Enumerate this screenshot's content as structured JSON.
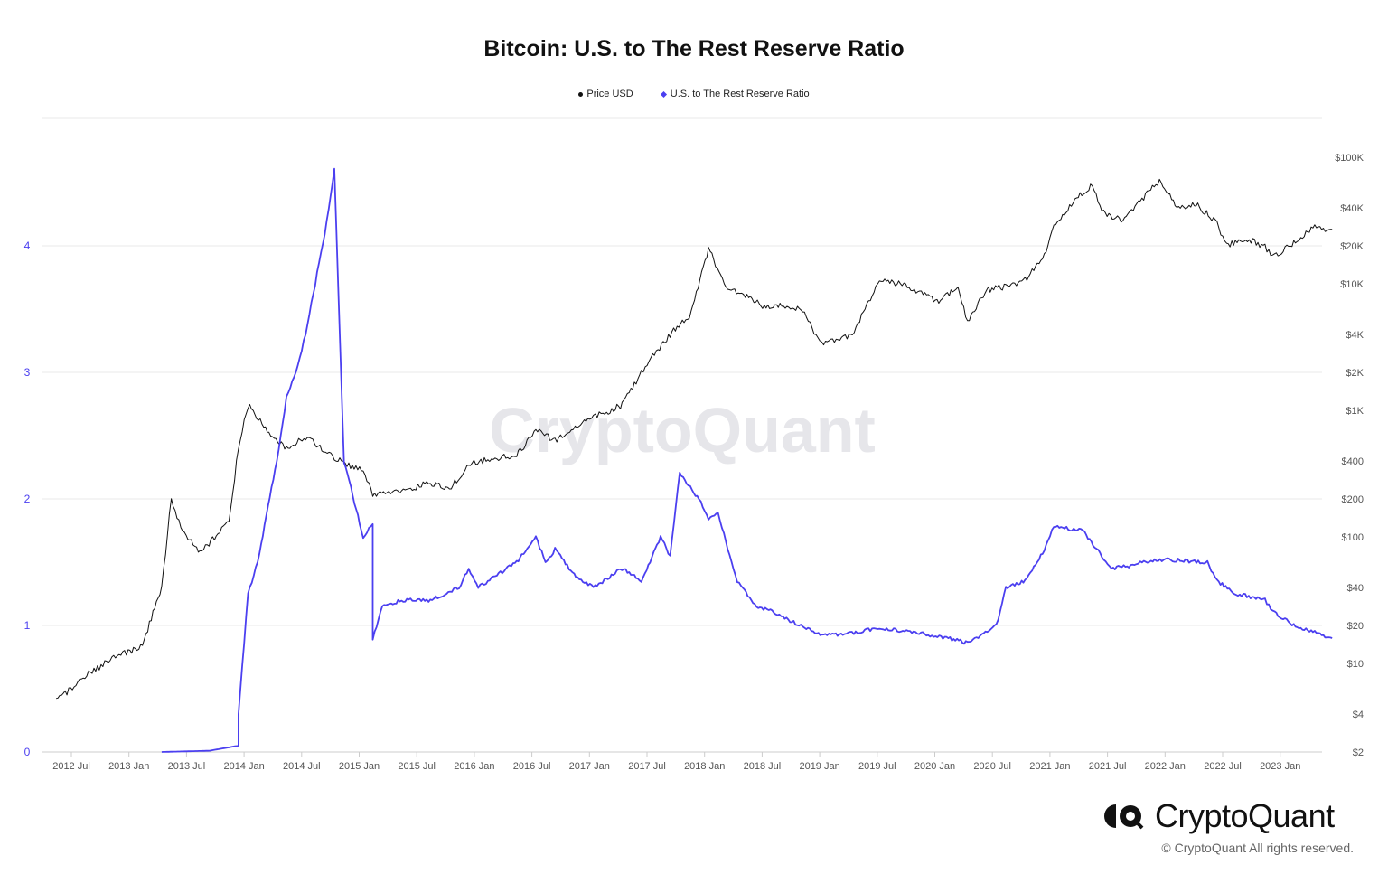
{
  "chart_data": {
    "type": "line",
    "title": "Bitcoin: U.S. to The Rest Reserve Ratio",
    "legend_position": "top-center",
    "grid": true,
    "x_ticks": [
      "2012 Jul",
      "2013 Jan",
      "2013 Jul",
      "2014 Jan",
      "2014 Jul",
      "2015 Jan",
      "2015 Jul",
      "2016 Jan",
      "2016 Jul",
      "2017 Jan",
      "2017 Jul",
      "2018 Jan",
      "2018 Jul",
      "2019 Jan",
      "2019 Jul",
      "2020 Jan",
      "2020 Jul",
      "2021 Jan",
      "2021 Jul",
      "2022 Jan",
      "2022 Jul",
      "2023 Jan"
    ],
    "xlim": [
      "2012-04",
      "2023-05"
    ],
    "y_left": {
      "ticks": [
        "0",
        "1",
        "2",
        "3",
        "4"
      ],
      "range": [
        0,
        4.6
      ],
      "color": "#4b3ff0"
    },
    "y_right": {
      "scale": "log",
      "ticks": [
        "$2",
        "$4",
        "$10",
        "$20",
        "$40",
        "$100",
        "$200",
        "$400",
        "$1K",
        "$2K",
        "$4K",
        "$10K",
        "$20K",
        "$40K",
        "$100K"
      ],
      "range": [
        2,
        100000
      ]
    },
    "series": [
      {
        "name": "Price USD",
        "axis": "right",
        "color": "#111111",
        "x": [
          "2012-04",
          "2012-07",
          "2012-10",
          "2013-01",
          "2013-03",
          "2013-04",
          "2013-05",
          "2013-07",
          "2013-10",
          "2013-11",
          "2013-12",
          "2014-02",
          "2014-04",
          "2014-06",
          "2014-09",
          "2014-12",
          "2015-01",
          "2015-04",
          "2015-07",
          "2015-09",
          "2015-11",
          "2016-01",
          "2016-04",
          "2016-06",
          "2016-08",
          "2016-12",
          "2017-01",
          "2017-03",
          "2017-05",
          "2017-06",
          "2017-08",
          "2017-10",
          "2017-12",
          "2018-02",
          "2018-04",
          "2018-06",
          "2018-08",
          "2018-10",
          "2018-11",
          "2018-12",
          "2019-03",
          "2019-06",
          "2019-08",
          "2019-10",
          "2019-12",
          "2020-02",
          "2020-03",
          "2020-05",
          "2020-07",
          "2020-09",
          "2020-11",
          "2020-12",
          "2021-02",
          "2021-04",
          "2021-05",
          "2021-07",
          "2021-09",
          "2021-11",
          "2022-01",
          "2022-03",
          "2022-05",
          "2022-06",
          "2022-08",
          "2022-10",
          "2022-11",
          "2023-01",
          "2023-03",
          "2023-05"
        ],
        "values": [
          5,
          8,
          11,
          14,
          40,
          200,
          120,
          75,
          130,
          500,
          1100,
          700,
          500,
          620,
          420,
          330,
          220,
          230,
          270,
          235,
          380,
          410,
          440,
          700,
          580,
          900,
          950,
          1100,
          2000,
          2600,
          4000,
          5500,
          19000,
          9000,
          8000,
          6500,
          6800,
          6300,
          4000,
          3400,
          4000,
          11000,
          10000,
          8500,
          7200,
          9800,
          5000,
          9000,
          9500,
          10800,
          17000,
          28000,
          45000,
          60000,
          37000,
          32000,
          45000,
          65000,
          40000,
          42000,
          30000,
          20000,
          23000,
          19500,
          16500,
          21000,
          28000,
          27000
        ]
      },
      {
        "name": "U.S. to The Rest Reserve Ratio",
        "axis": "left",
        "color": "#4b3ff0",
        "x": [
          "2013-03",
          "2013-08",
          "2013-11",
          "2013-11",
          "2013-12",
          "2014-01",
          "2014-03",
          "2014-04",
          "2014-05",
          "2014-06",
          "2014-07",
          "2014-08",
          "2014-09",
          "2014-10",
          "2014-12",
          "2015-01",
          "2015-01",
          "2015-02",
          "2015-04",
          "2015-07",
          "2015-10",
          "2015-11",
          "2015-12",
          "2016-01",
          "2016-04",
          "2016-06",
          "2016-07",
          "2016-08",
          "2016-10",
          "2016-12",
          "2017-03",
          "2017-05",
          "2017-07",
          "2017-08",
          "2017-09",
          "2017-11",
          "2017-12",
          "2018-01",
          "2018-02",
          "2018-03",
          "2018-05",
          "2018-07",
          "2018-10",
          "2018-12",
          "2019-02",
          "2019-06",
          "2019-09",
          "2020-01",
          "2020-03",
          "2020-06",
          "2020-07",
          "2020-09",
          "2020-11",
          "2020-12",
          "2021-03",
          "2021-05",
          "2021-06",
          "2021-08",
          "2021-09",
          "2021-12",
          "2022-04",
          "2022-05",
          "2022-07",
          "2022-10",
          "2022-11",
          "2023-01",
          "2023-03",
          "2023-05"
        ],
        "values": [
          0,
          0.01,
          0.05,
          0.3,
          1.25,
          1.5,
          2.3,
          2.8,
          3.0,
          3.3,
          3.7,
          4.1,
          4.6,
          2.3,
          1.7,
          1.8,
          0.9,
          1.15,
          1.2,
          1.2,
          1.3,
          1.45,
          1.3,
          1.35,
          1.5,
          1.7,
          1.5,
          1.6,
          1.4,
          1.3,
          1.45,
          1.35,
          1.7,
          1.55,
          2.2,
          2.0,
          1.85,
          1.9,
          1.6,
          1.35,
          1.15,
          1.1,
          0.98,
          0.92,
          0.93,
          0.98,
          0.95,
          0.9,
          0.86,
          1.0,
          1.3,
          1.35,
          1.6,
          1.78,
          1.75,
          1.55,
          1.45,
          1.47,
          1.5,
          1.52,
          1.5,
          1.35,
          1.25,
          1.2,
          1.1,
          1.0,
          0.95,
          0.9
        ]
      }
    ]
  },
  "watermark": "CryptoQuant",
  "brand": {
    "logo_text": "CryptoQuant",
    "copyright": "© CryptoQuant All rights reserved."
  }
}
